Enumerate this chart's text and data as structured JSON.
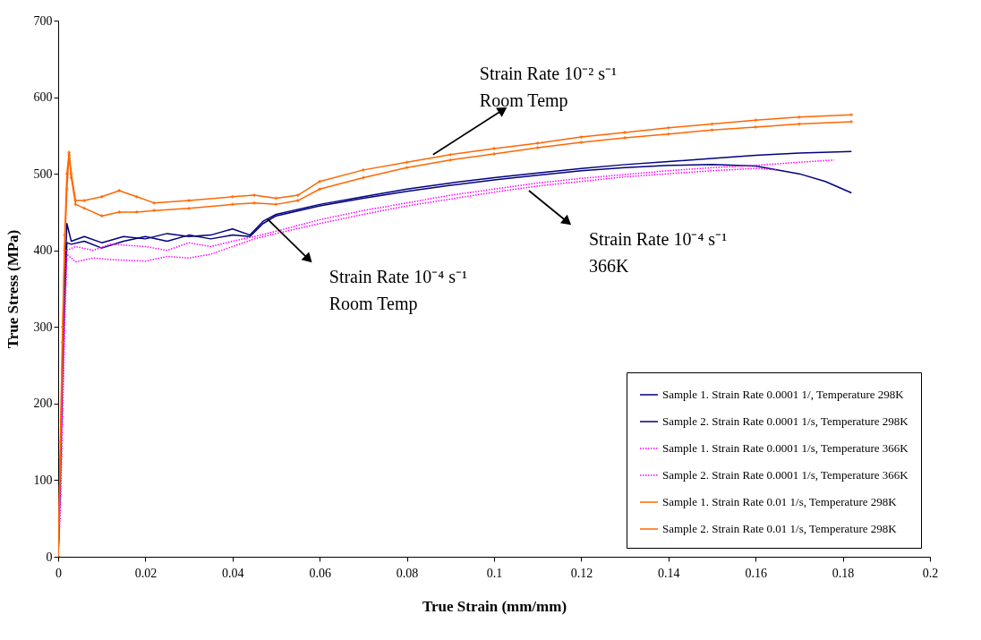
{
  "chart_data": {
    "type": "line",
    "xlabel": "True Strain (mm/mm)",
    "ylabel": "True Stress (MPa)",
    "xlim": [
      0,
      0.2
    ],
    "xticks": [
      0,
      0.02,
      0.04,
      0.06,
      0.08,
      0.1,
      0.12,
      0.14,
      0.16,
      0.18,
      0.2
    ],
    "ylim": [
      0,
      700
    ],
    "yticks": [
      0,
      100,
      200,
      300,
      400,
      500,
      600,
      700
    ],
    "grid": false,
    "legend": "bottom right",
    "annotations": [
      {
        "text": "Strain Rate 10⁻² s⁻¹\nRoom Temp",
        "x": 0.086,
        "y": 525
      },
      {
        "text": "Strain Rate 10⁻⁴ s⁻¹\nRoom Temp",
        "x": 0.048,
        "y": 441
      },
      {
        "text": "Strain Rate 10⁻⁴ s⁻¹\n366K",
        "x": 0.108,
        "y": 478
      }
    ],
    "series": [
      {
        "name": "Sample 1. Strain Rate 0.0001 1/, Temperature 298K",
        "color": "#000080",
        "line_style": "solid",
        "marker": "none",
        "x": [
          0,
          0.0005,
          0.001,
          0.0015,
          0.002,
          0.003,
          0.006,
          0.01,
          0.015,
          0.02,
          0.025,
          0.03,
          0.035,
          0.04,
          0.044,
          0.047,
          0.05,
          0.06,
          0.07,
          0.08,
          0.09,
          0.1,
          0.11,
          0.12,
          0.13,
          0.14,
          0.15,
          0.16,
          0.17,
          0.182
        ],
        "values": [
          0,
          120,
          260,
          360,
          435,
          412,
          418,
          410,
          418,
          415,
          422,
          418,
          420,
          428,
          420,
          438,
          447,
          460,
          470,
          480,
          488,
          495,
          501,
          507,
          512,
          516,
          520,
          524,
          527,
          529
        ]
      },
      {
        "name": "Sample 2. Strain Rate 0.0001 1/s, Temperature 298K",
        "color": "#000080",
        "line_style": "solid",
        "marker": "none",
        "x": [
          0,
          0.0005,
          0.001,
          0.0015,
          0.002,
          0.003,
          0.006,
          0.01,
          0.015,
          0.02,
          0.025,
          0.03,
          0.035,
          0.04,
          0.044,
          0.047,
          0.05,
          0.06,
          0.07,
          0.08,
          0.09,
          0.1,
          0.11,
          0.12,
          0.13,
          0.14,
          0.15,
          0.16,
          0.17,
          0.176,
          0.182
        ],
        "values": [
          0,
          100,
          240,
          340,
          410,
          408,
          412,
          403,
          412,
          418,
          412,
          420,
          415,
          420,
          418,
          435,
          445,
          458,
          468,
          477,
          485,
          492,
          498,
          504,
          508,
          511,
          512,
          510,
          500,
          490,
          475
        ]
      },
      {
        "name": "Sample 1. Strain Rate 0.0001 1/s, Temperature 366K",
        "color": "#ff00ff",
        "line_style": "dotted",
        "marker": "none",
        "x": [
          0,
          0.0005,
          0.001,
          0.0015,
          0.002,
          0.004,
          0.008,
          0.012,
          0.02,
          0.025,
          0.03,
          0.035,
          0.04,
          0.045,
          0.05,
          0.06,
          0.07,
          0.08,
          0.09,
          0.1,
          0.11,
          0.12,
          0.13,
          0.14,
          0.15,
          0.16,
          0.17,
          0.178
        ],
        "values": [
          0,
          80,
          200,
          320,
          400,
          405,
          400,
          408,
          405,
          400,
          410,
          405,
          412,
          418,
          425,
          440,
          452,
          462,
          472,
          480,
          488,
          494,
          499,
          504,
          508,
          511,
          515,
          518
        ]
      },
      {
        "name": "Sample 2. Strain Rate 0.0001 1/s, Temperature 366K",
        "color": "#ff00ff",
        "line_style": "dotted",
        "marker": "none",
        "x": [
          0,
          0.0005,
          0.001,
          0.0015,
          0.002,
          0.004,
          0.008,
          0.012,
          0.02,
          0.025,
          0.03,
          0.035,
          0.04,
          0.045,
          0.05,
          0.06,
          0.07,
          0.08,
          0.09,
          0.1,
          0.11,
          0.12,
          0.13,
          0.14,
          0.15,
          0.16,
          0.165
        ],
        "values": [
          0,
          60,
          180,
          300,
          395,
          385,
          390,
          388,
          386,
          392,
          390,
          395,
          405,
          415,
          422,
          435,
          447,
          458,
          467,
          476,
          484,
          490,
          496,
          500,
          504,
          507,
          505
        ]
      },
      {
        "name": "Sample 1. Strain Rate 0.01 1/s, Temperature 298K",
        "color": "#ff6600",
        "line_style": "solid",
        "marker": "cross",
        "x": [
          0,
          0.0005,
          0.001,
          0.0015,
          0.002,
          0.0025,
          0.003,
          0.004,
          0.006,
          0.01,
          0.014,
          0.018,
          0.022,
          0.03,
          0.04,
          0.045,
          0.05,
          0.055,
          0.06,
          0.07,
          0.08,
          0.09,
          0.1,
          0.11,
          0.12,
          0.13,
          0.14,
          0.15,
          0.16,
          0.17,
          0.182
        ],
        "values": [
          0,
          150,
          300,
          420,
          500,
          528,
          500,
          465,
          465,
          470,
          478,
          470,
          462,
          465,
          470,
          472,
          468,
          472,
          490,
          505,
          515,
          525,
          533,
          540,
          548,
          554,
          560,
          565,
          570,
          574,
          577
        ]
      },
      {
        "name": "Sample 2. Strain Rate 0.01 1/s, Temperature 298K",
        "color": "#ff6600",
        "line_style": "solid",
        "marker": "cross",
        "x": [
          0,
          0.0005,
          0.001,
          0.0015,
          0.002,
          0.0025,
          0.003,
          0.004,
          0.006,
          0.01,
          0.014,
          0.018,
          0.022,
          0.03,
          0.04,
          0.045,
          0.05,
          0.055,
          0.06,
          0.07,
          0.08,
          0.09,
          0.1,
          0.11,
          0.12,
          0.13,
          0.14,
          0.15,
          0.16,
          0.17,
          0.182
        ],
        "values": [
          0,
          130,
          280,
          400,
          480,
          525,
          495,
          460,
          455,
          445,
          450,
          450,
          452,
          455,
          460,
          462,
          460,
          465,
          480,
          495,
          508,
          518,
          526,
          534,
          541,
          547,
          552,
          557,
          561,
          565,
          568
        ]
      }
    ]
  }
}
